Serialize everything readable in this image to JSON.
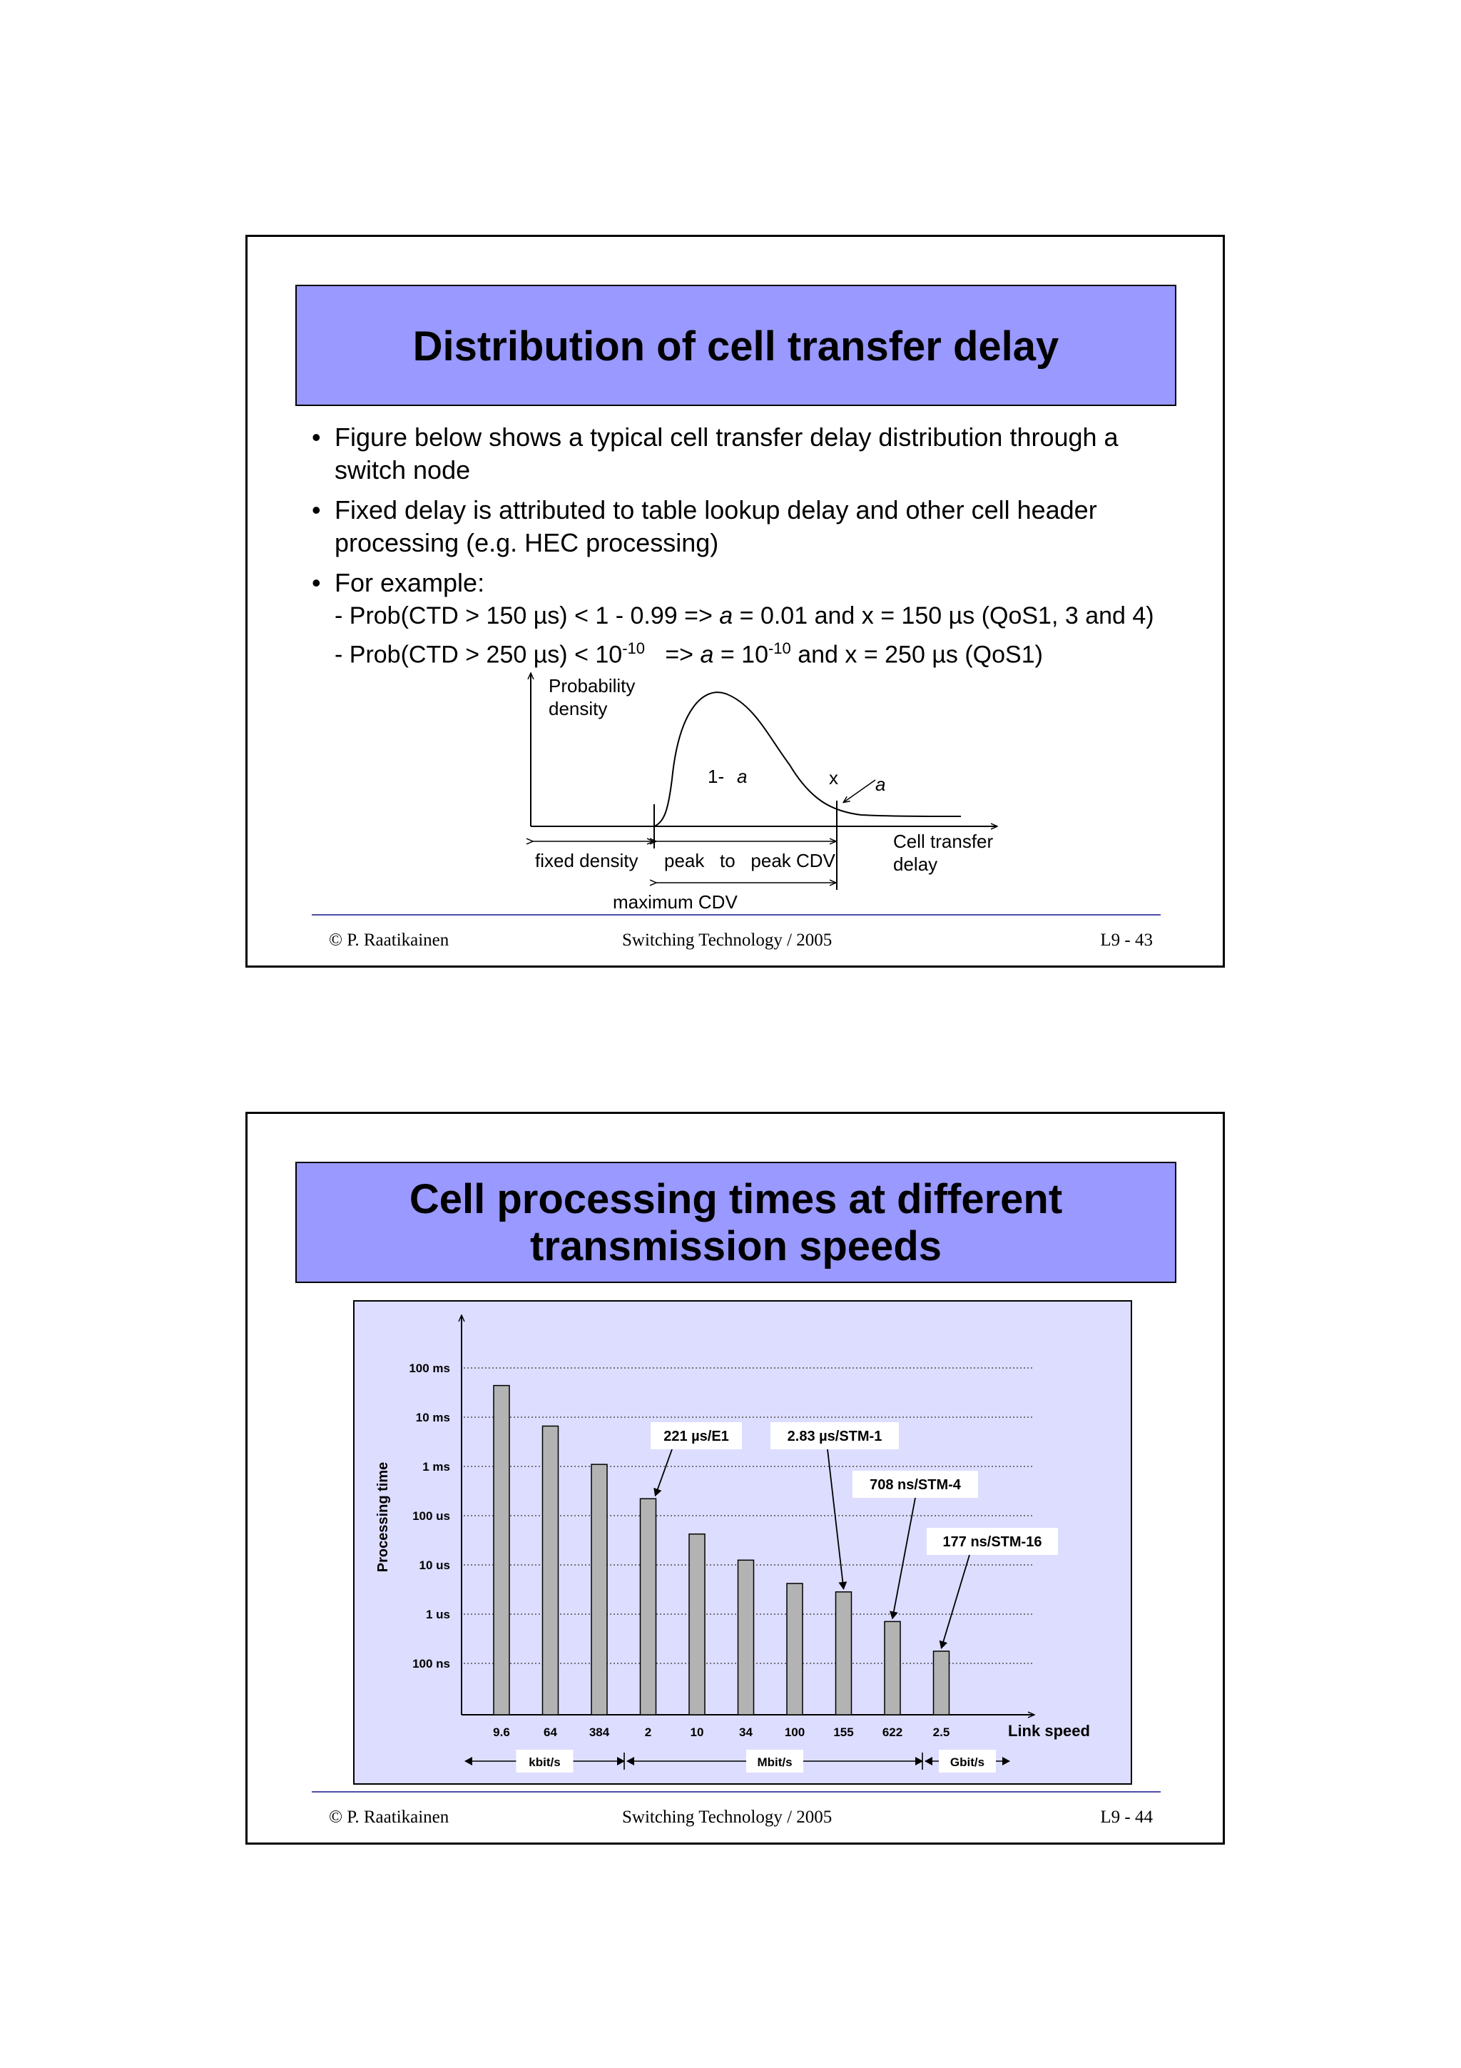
{
  "slide1": {
    "title": "Distribution of cell transfer delay",
    "bullets": [
      "Figure below shows a typical cell transfer delay distribution through a switch node",
      "Fixed delay is attributed to table lookup delay and other cell header processing (e.g. HEC processing)",
      "For example:"
    ],
    "example1": {
      "a": "- Prob(CTD > 150 µs) <  1 - 0.99 => ",
      "b": "a",
      "c": " = 0.01 and x = 150 µs (QoS1, 3 and 4)"
    },
    "example2": {
      "a": "- Prob(CTD > 250 µs) < 10",
      "exp1": "-10",
      "b": "   => ",
      "c": "a",
      "d": " = 10",
      "exp2": "-10",
      "e": " and x = 250 µs (QoS1)"
    },
    "figure": {
      "ylabel_line1": "Probability",
      "ylabel_line2": "density",
      "one_minus": "1-",
      "a_symbol": "a",
      "x_mark": "x",
      "tail_label": "a",
      "xlabel_line1": "Cell transfer",
      "xlabel_line2": "delay",
      "fixed": "fixed density",
      "peak_cdv": "peak   to   peak CDV",
      "max_cdv": "maximum CDV"
    },
    "footer": {
      "author": "©  P. Raatikainen",
      "course": "Switching Technology  / 2005",
      "page": "L9 - 43"
    }
  },
  "slide2": {
    "title_line1": "Cell processing times at different",
    "title_line2": "transmission speeds",
    "footer": {
      "author": "©  P. Raatikainen",
      "course": "Switching Technology  / 2005",
      "page": "L9 - 44"
    }
  },
  "chart_data": {
    "type": "bar",
    "title": "",
    "xlabel": "Link speed",
    "ylabel": "Processing time",
    "yscale": "log",
    "yticks": [
      "100 ns",
      "1 us",
      "10 us",
      "100 us",
      "1 ms",
      "10 ms",
      "100 ms"
    ],
    "ytick_values_s": [
      1e-07,
      1e-06,
      1e-05,
      0.0001,
      0.001,
      0.01,
      0.1
    ],
    "categories": [
      "9.6",
      "64",
      "384",
      "2",
      "10",
      "34",
      "100",
      "155",
      "622",
      "2.5"
    ],
    "units": [
      {
        "label": "kbit/s",
        "covers": [
          "9.6",
          "64",
          "384"
        ]
      },
      {
        "label": "Mbit/s",
        "covers": [
          "2",
          "10",
          "34",
          "100",
          "155",
          "622"
        ]
      },
      {
        "label": "Gbit/s",
        "covers": [
          "2.5"
        ]
      }
    ],
    "values_s": [
      0.044,
      0.0066,
      0.0011,
      0.000221,
      4.24e-05,
      1.25e-05,
      4.2e-06,
      2.83e-06,
      7.08e-07,
      1.77e-07
    ],
    "annotations": [
      {
        "text": "221 µs/E1",
        "category": "2"
      },
      {
        "text": "2.83 µs/STM-1",
        "category": "155"
      },
      {
        "text": "708 ns/STM-4",
        "category": "622"
      },
      {
        "text": "177 ns/STM-16",
        "category": "2.5"
      }
    ],
    "colors": {
      "background": "#ddddff",
      "bar": "#b3b3b3"
    },
    "grid": true
  }
}
